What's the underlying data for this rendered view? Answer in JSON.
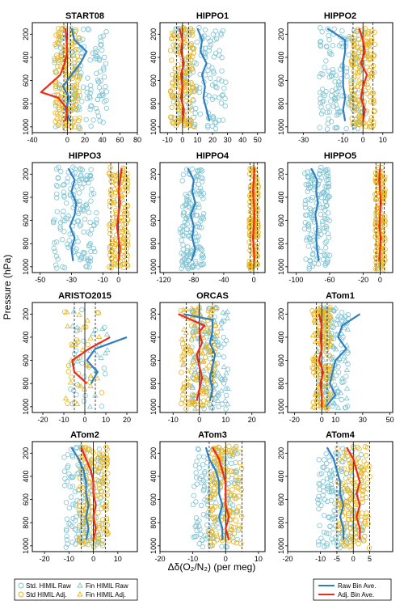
{
  "figure": {
    "ylabel": "Pressure (hPa)",
    "xlabel": "Δδ(O₂/N₂) (per meg)",
    "legend_left": [
      {
        "label": "Std. HIMIL Raw",
        "marker": "circle",
        "color": "#7ec3d3"
      },
      {
        "label": "Std HIMIL Adj.",
        "marker": "circle",
        "color": "#e8b41e"
      },
      {
        "label": "Fin HIMIL Raw",
        "marker": "triangle",
        "color": "#7ec3d3"
      },
      {
        "label": "Fin HIMIL Adj.",
        "marker": "triangle",
        "color": "#e8b41e"
      }
    ],
    "legend_right": [
      {
        "label": "Raw Bin Ave.",
        "color": "#2f7fc0"
      },
      {
        "label": "Adj. Bin Ave.",
        "color": "#ee2a1b"
      }
    ]
  },
  "chart_data": [
    {
      "type": "scatter",
      "title": "START08",
      "xlim": [
        -40,
        80
      ],
      "xticks": [
        -40,
        0,
        20,
        40,
        60,
        80
      ],
      "xtick_labels": [
        "-40",
        "0",
        "20",
        "40",
        "60",
        "80"
      ],
      "ylim": [
        1050,
        100
      ],
      "yticks": [
        200,
        400,
        600,
        800,
        1000
      ],
      "vline_solid": 0,
      "vlines_dashed": [
        -4,
        4
      ],
      "raw_scatter": {
        "center": 15,
        "spread": 30
      },
      "adj_scatter": {
        "center": 0,
        "spread": 14
      },
      "raw_line": {
        "x": [
          5,
          8,
          22,
          15,
          5,
          -5,
          2,
          -2,
          3
        ],
        "y": [
          150,
          250,
          350,
          450,
          550,
          650,
          750,
          850,
          950
        ]
      },
      "adj_line": {
        "x": [
          -2,
          -1,
          0,
          -3,
          -8,
          -30,
          -10,
          0,
          -2
        ],
        "y": [
          150,
          250,
          350,
          450,
          550,
          700,
          750,
          850,
          950
        ]
      }
    },
    {
      "type": "scatter",
      "title": "HIPPO1",
      "xlim": [
        -15,
        55
      ],
      "xticks": [
        -10,
        0,
        10,
        20,
        30,
        40,
        50
      ],
      "xtick_labels": [
        "-10",
        "0",
        "10",
        "20",
        "30",
        "40",
        "50"
      ],
      "ylim": [
        1050,
        100
      ],
      "yticks": [
        200,
        400,
        600,
        800,
        1000
      ],
      "vline_solid": 0,
      "vlines_dashed": [
        -4,
        4
      ],
      "raw_scatter": {
        "center": 12,
        "spread": 18
      },
      "adj_scatter": {
        "center": 0,
        "spread": 8
      },
      "raw_line": {
        "x": [
          10,
          13,
          12,
          16,
          13,
          15,
          14,
          16,
          18
        ],
        "y": [
          150,
          250,
          350,
          450,
          550,
          650,
          750,
          850,
          950
        ]
      },
      "adj_line": {
        "x": [
          -2,
          0,
          -1,
          1,
          -1,
          0,
          -1,
          1,
          0
        ],
        "y": [
          150,
          250,
          350,
          450,
          550,
          650,
          750,
          850,
          950
        ]
      }
    },
    {
      "type": "scatter",
      "title": "HIPPO2",
      "xlim": [
        -38,
        15
      ],
      "xticks": [
        -30,
        -10,
        0,
        10
      ],
      "xtick_labels": [
        "-30",
        "-10",
        "0",
        "10"
      ],
      "ylim": [
        1050,
        100
      ],
      "yticks": [
        200,
        400,
        600,
        800,
        1000
      ],
      "vline_solid": 0,
      "vlines_dashed": [
        -5,
        5
      ],
      "raw_scatter": {
        "center": -10,
        "spread": 12
      },
      "adj_scatter": {
        "center": 0,
        "spread": 6
      },
      "raw_line": {
        "x": [
          -18,
          -9,
          -9,
          -10,
          -10,
          -10,
          -9,
          -10,
          -9
        ],
        "y": [
          150,
          250,
          350,
          450,
          550,
          650,
          750,
          850,
          950
        ]
      },
      "adj_line": {
        "x": [
          -2,
          0,
          1,
          -1,
          2,
          0,
          -1,
          1,
          0
        ],
        "y": [
          150,
          250,
          350,
          450,
          550,
          650,
          750,
          850,
          950
        ]
      }
    },
    {
      "type": "scatter",
      "title": "HIPPO3",
      "xlim": [
        -55,
        12
      ],
      "xticks": [
        -50,
        -30,
        -10,
        0
      ],
      "xtick_labels": [
        "-50",
        "-30",
        "-10",
        "0"
      ],
      "ylim": [
        1050,
        100
      ],
      "yticks": [
        200,
        400,
        600,
        800,
        1000
      ],
      "vline_solid": 0,
      "vlines_dashed": [
        -5,
        5
      ],
      "raw_scatter": {
        "center": -28,
        "spread": 14
      },
      "adj_scatter": {
        "center": 0,
        "spread": 6
      },
      "raw_line": {
        "x": [
          -32,
          -28,
          -30,
          -27,
          -28,
          -31,
          -28,
          -30,
          -29
        ],
        "y": [
          150,
          250,
          350,
          450,
          550,
          650,
          750,
          850,
          950
        ]
      },
      "adj_line": {
        "x": [
          2,
          1,
          0,
          1,
          0,
          -1,
          0,
          1,
          0
        ],
        "y": [
          150,
          250,
          350,
          450,
          550,
          650,
          750,
          850,
          950
        ]
      }
    },
    {
      "type": "scatter",
      "title": "HIPPO4",
      "xlim": [
        -125,
        15
      ],
      "xticks": [
        -120,
        -80,
        -40,
        0
      ],
      "xtick_labels": [
        "-120",
        "-80",
        "-40",
        "0"
      ],
      "ylim": [
        1050,
        100
      ],
      "yticks": [
        200,
        400,
        600,
        800,
        1000
      ],
      "vline_solid": 0,
      "vlines_dashed": [
        -5,
        5
      ],
      "raw_scatter": {
        "center": -82,
        "spread": 16
      },
      "adj_scatter": {
        "center": 0,
        "spread": 6
      },
      "raw_line": {
        "x": [
          -88,
          -80,
          -82,
          -78,
          -84,
          -80,
          -82,
          -78,
          -83
        ],
        "y": [
          150,
          250,
          350,
          450,
          550,
          650,
          750,
          850,
          950
        ]
      },
      "adj_line": {
        "x": [
          1,
          0,
          -1,
          0,
          1,
          0,
          -1,
          0,
          1
        ],
        "y": [
          150,
          250,
          350,
          450,
          550,
          650,
          750,
          850,
          950
        ]
      }
    },
    {
      "type": "scatter",
      "title": "HIPPO5",
      "xlim": [
        -110,
        15
      ],
      "xticks": [
        -100,
        -60,
        -20,
        0
      ],
      "xtick_labels": [
        "-100",
        "-60",
        "-20",
        "0"
      ],
      "ylim": [
        1050,
        100
      ],
      "yticks": [
        200,
        400,
        600,
        800,
        1000
      ],
      "vline_solid": 0,
      "vlines_dashed": [
        -5,
        5
      ],
      "raw_scatter": {
        "center": -75,
        "spread": 15
      },
      "adj_scatter": {
        "center": 0,
        "spread": 6
      },
      "raw_line": {
        "x": [
          -82,
          -75,
          -76,
          -74,
          -77,
          -75,
          -76,
          -75,
          -73
        ],
        "y": [
          150,
          250,
          350,
          450,
          550,
          650,
          750,
          850,
          950
        ]
      },
      "adj_line": {
        "x": [
          0,
          -1,
          0,
          1,
          0,
          -1,
          1,
          0,
          -1
        ],
        "y": [
          150,
          250,
          350,
          450,
          550,
          650,
          750,
          850,
          950
        ]
      }
    },
    {
      "type": "scatter",
      "title": "ARISTO2015",
      "xlim": [
        -25,
        25
      ],
      "xticks": [
        -20,
        -10,
        0,
        10,
        20
      ],
      "xtick_labels": [
        "-20",
        "-10",
        "0",
        "10",
        "20"
      ],
      "ylim": [
        1050,
        100
      ],
      "yticks": [
        200,
        400,
        600,
        800,
        1000
      ],
      "vline_solid": 0,
      "vlines_dashed": [
        -5,
        5
      ],
      "raw_scatter": {
        "center": 2,
        "spread": 9
      },
      "adj_scatter": {
        "center": -1,
        "spread": 10
      },
      "raw_line": {
        "x": [
          20,
          5,
          1,
          6,
          3
        ],
        "y": [
          400,
          500,
          600,
          700,
          800
        ]
      },
      "adj_line": {
        "x": [
          12,
          2,
          -6,
          -5,
          1
        ],
        "y": [
          400,
          500,
          600,
          700,
          800
        ]
      }
    },
    {
      "type": "scatter",
      "title": "ORCAS",
      "xlim": [
        -15,
        25
      ],
      "xticks": [
        -10,
        0,
        10,
        20
      ],
      "xtick_labels": [
        "-10",
        "0",
        "10",
        "20"
      ],
      "ylim": [
        1050,
        100
      ],
      "yticks": [
        200,
        400,
        600,
        800,
        1000
      ],
      "vline_solid": 0,
      "vlines_dashed": [
        -5,
        5
      ],
      "raw_scatter": {
        "center": 4,
        "spread": 7
      },
      "adj_scatter": {
        "center": 0,
        "spread": 7
      },
      "raw_line": {
        "x": [
          -6,
          5,
          5,
          4,
          6,
          5,
          4,
          5,
          4
        ],
        "y": [
          200,
          250,
          350,
          450,
          550,
          650,
          750,
          850,
          950
        ]
      },
      "adj_line": {
        "x": [
          -8,
          2,
          0,
          1,
          -1,
          0,
          1,
          0,
          -1
        ],
        "y": [
          200,
          300,
          350,
          450,
          550,
          650,
          750,
          850,
          950
        ]
      }
    },
    {
      "type": "scatter",
      "title": "ATom1",
      "xlim": [
        -25,
        52
      ],
      "xticks": [
        -20,
        0,
        10,
        30,
        50
      ],
      "xtick_labels": [
        "-20",
        "0",
        "10",
        "30",
        "50"
      ],
      "ylim": [
        1050,
        100
      ],
      "yticks": [
        200,
        400,
        600,
        800,
        1000
      ],
      "vline_solid": 0,
      "vlines_dashed": [
        -4,
        4
      ],
      "raw_scatter": {
        "center": 8,
        "spread": 12
      },
      "adj_scatter": {
        "center": 0,
        "spread": 7
      },
      "raw_line": {
        "x": [
          28,
          15,
          12,
          18,
          10,
          8,
          6,
          10,
          3
        ],
        "y": [
          200,
          300,
          400,
          500,
          600,
          700,
          800,
          900,
          1000
        ]
      },
      "adj_line": {
        "x": [
          -2,
          0,
          -1,
          0,
          -2,
          1,
          -1,
          0,
          0
        ],
        "y": [
          200,
          300,
          400,
          500,
          600,
          700,
          800,
          900,
          1000
        ]
      }
    },
    {
      "type": "scatter",
      "title": "ATom2",
      "xlim": [
        -25,
        18
      ],
      "xticks": [
        -20,
        -10,
        0,
        10
      ],
      "xtick_labels": [
        "-20",
        "-10",
        "0",
        "10"
      ],
      "ylim": [
        1050,
        100
      ],
      "yticks": [
        200,
        400,
        600,
        800,
        1000
      ],
      "vline_solid": 0,
      "vlines_dashed": [
        -5,
        5
      ],
      "raw_scatter": {
        "center": -4,
        "spread": 8
      },
      "adj_scatter": {
        "center": 0,
        "spread": 6
      },
      "raw_line": {
        "x": [
          -9,
          -6,
          -4,
          -3,
          -3,
          -2,
          -3,
          -2,
          -3
        ],
        "y": [
          150,
          250,
          350,
          450,
          550,
          650,
          750,
          850,
          950
        ]
      },
      "adj_line": {
        "x": [
          -5,
          -3,
          -1,
          0,
          0,
          1,
          0,
          1,
          0
        ],
        "y": [
          150,
          250,
          350,
          450,
          550,
          650,
          750,
          850,
          950
        ]
      }
    },
    {
      "type": "scatter",
      "title": "ATom3",
      "xlim": [
        -20,
        12
      ],
      "xticks": [
        -20,
        -10,
        0,
        10
      ],
      "xtick_labels": [
        "-20",
        "-10",
        "0",
        "10"
      ],
      "ylim": [
        1050,
        100
      ],
      "yticks": [
        200,
        400,
        600,
        800,
        1000
      ],
      "vline_solid": 0,
      "vlines_dashed": [
        -5,
        5
      ],
      "raw_scatter": {
        "center": -3,
        "spread": 7
      },
      "adj_scatter": {
        "center": 0,
        "spread": 5
      },
      "raw_line": {
        "x": [
          -6,
          -5,
          -3,
          -2,
          -2,
          -1,
          -2,
          -1,
          -1
        ],
        "y": [
          150,
          250,
          350,
          450,
          550,
          650,
          750,
          850,
          950
        ]
      },
      "adj_line": {
        "x": [
          -4,
          -2,
          -1,
          0,
          0,
          0,
          1,
          0,
          1
        ],
        "y": [
          150,
          250,
          350,
          450,
          550,
          650,
          750,
          850,
          950
        ]
      }
    },
    {
      "type": "scatter",
      "title": "ATom4",
      "xlim": [
        -20,
        12
      ],
      "xticks": [
        -20,
        -10,
        -5,
        0,
        5
      ],
      "xtick_labels": [
        "-20",
        "-10",
        "-5",
        "0",
        "5"
      ],
      "ylim": [
        1050,
        100
      ],
      "yticks": [
        200,
        400,
        600,
        800,
        1000
      ],
      "vline_solid": 0,
      "vlines_dashed": [
        -5,
        5
      ],
      "raw_scatter": {
        "center": -4,
        "spread": 7
      },
      "adj_scatter": {
        "center": 0,
        "spread": 5
      },
      "raw_line": {
        "x": [
          -8,
          -6,
          -5,
          -4,
          -4,
          -3,
          -4,
          -3,
          -3
        ],
        "y": [
          150,
          250,
          350,
          450,
          550,
          650,
          750,
          850,
          950
        ]
      },
      "adj_line": {
        "x": [
          -2,
          0,
          1,
          2,
          1,
          2,
          1,
          2,
          2
        ],
        "y": [
          150,
          250,
          350,
          450,
          550,
          650,
          750,
          850,
          950
        ]
      }
    }
  ]
}
